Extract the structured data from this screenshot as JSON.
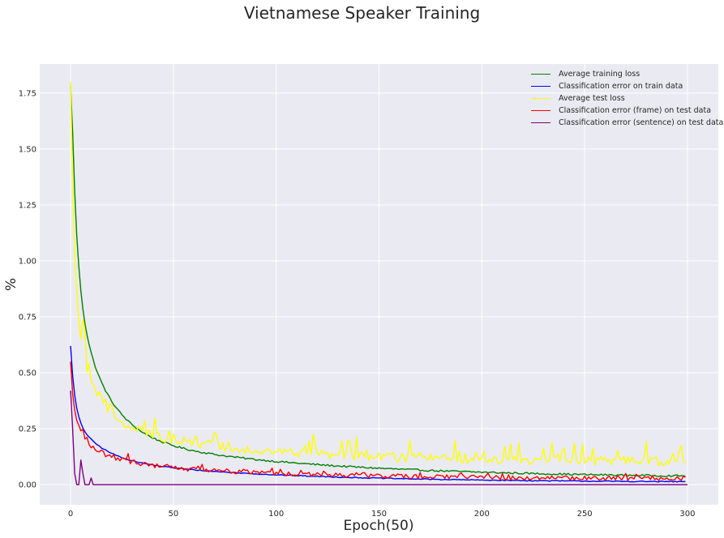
{
  "chart_data": {
    "type": "line",
    "title": "Vietnamese Speaker Training",
    "xlabel": "Epoch(50)",
    "ylabel": "%",
    "xlim": [
      -15,
      315
    ],
    "ylim": [
      -0.09,
      1.88
    ],
    "xticks": [
      0,
      50,
      100,
      150,
      200,
      250,
      300
    ],
    "yticks": [
      0.0,
      0.25,
      0.5,
      0.75,
      1.0,
      1.25,
      1.5,
      1.75
    ],
    "ytick_labels": [
      "0.00",
      "0.25",
      "0.50",
      "0.75",
      "1.00",
      "1.25",
      "1.50",
      "1.75"
    ],
    "grid": true,
    "legend_position": "top-right",
    "series": [
      {
        "name": "Average training loss",
        "color": "#008000",
        "shape": {
          "type": "decay",
          "start": 1.78,
          "floor": 0.03,
          "a1": 1.0,
          "tau1": 2.5,
          "a2": 0.72,
          "tau2": 14,
          "a3": 0.21,
          "tau3": 95,
          "noise": 0.004,
          "spike_amp": 0
        }
      },
      {
        "name": "Classification error on train data",
        "color": "#0000ff",
        "shape": {
          "type": "decay",
          "start": 0.62,
          "floor": 0.01,
          "a1": 0.3,
          "tau1": 2.0,
          "a2": 0.2,
          "tau2": 13,
          "a3": 0.11,
          "tau3": 85,
          "noise": 0.002,
          "spike_amp": 0
        }
      },
      {
        "name": "Average test loss",
        "color": "#ffff00",
        "shape": {
          "type": "decay",
          "start": 1.8,
          "floor": 0.1,
          "a1": 1.0,
          "tau1": 2.0,
          "a2": 0.48,
          "tau2": 10,
          "a3": 0.2,
          "tau3": 70,
          "noise": 0.02,
          "spike_amp": 0.15
        }
      },
      {
        "name": "Classification error (frame) on test data",
        "color": "#ff0000",
        "shape": {
          "type": "decay",
          "start": 0.55,
          "floor": 0.025,
          "a1": 0.27,
          "tau1": 2.0,
          "a2": 0.15,
          "tau2": 12,
          "a3": 0.09,
          "tau3": 80,
          "noise": 0.01,
          "spike_amp": 0.03
        }
      },
      {
        "name": "Classification error (sentence) on test data",
        "color": "#800080",
        "shape": {
          "type": "sentence",
          "start": 0.42,
          "points": [
            [
              0,
              0.42
            ],
            [
              1,
              0.25
            ],
            [
              2,
              0.05
            ],
            [
              3,
              0.0
            ],
            [
              4,
              0.0
            ],
            [
              5,
              0.11
            ],
            [
              6,
              0.05
            ],
            [
              7,
              0.0
            ],
            [
              9,
              0.0
            ],
            [
              10,
              0.03
            ],
            [
              11,
              0.0
            ],
            [
              300,
              0.0
            ]
          ]
        }
      }
    ]
  }
}
